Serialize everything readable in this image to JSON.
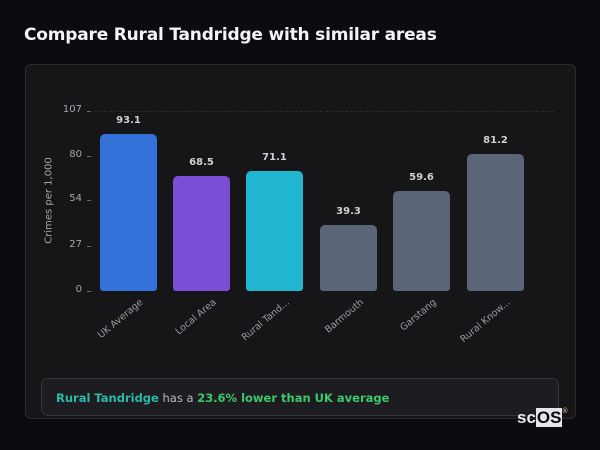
{
  "header": {
    "title": "Compare Rural Tandridge with similar areas"
  },
  "chart_data": {
    "type": "bar",
    "title": "Compare Rural Tandridge with similar areas",
    "xlabel": "",
    "ylabel": "Crimes per 1,000",
    "ylim": [
      0,
      107
    ],
    "yticks": [
      0,
      27,
      54,
      80,
      107
    ],
    "grid": "dashed top line only",
    "legend": "none",
    "categories": [
      "UK Average",
      "Local Area",
      "Rural Tand...",
      "Barmouth",
      "Garstang",
      "Rural Know..."
    ],
    "values": [
      93.1,
      68.5,
      71.1,
      39.3,
      59.6,
      81.2
    ],
    "value_labels": [
      "93.1",
      "68.5",
      "71.1",
      "39.3",
      "59.6",
      "81.2"
    ],
    "colors": [
      "#3272d9",
      "#7a4fd6",
      "#21b6cf",
      "#5a6577",
      "#5a6577",
      "#5a6577"
    ]
  },
  "insight": {
    "area": "Rural Tandridge",
    "connector": " has a ",
    "comparison": "23.6% lower than UK average"
  },
  "logo": {
    "prefix": "sc",
    "highlight": "OS",
    "mark": "®"
  }
}
